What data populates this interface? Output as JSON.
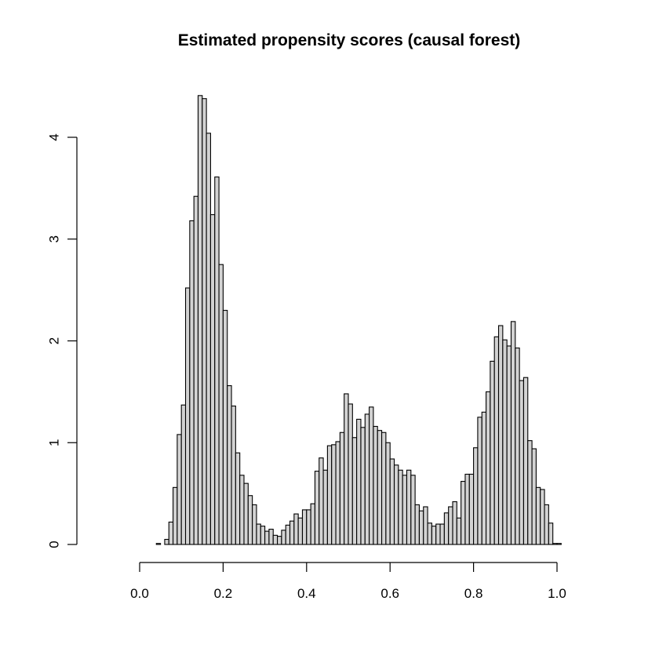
{
  "chart_data": {
    "type": "bar",
    "title": "Estimated propensity scores (causal forest)",
    "xlabel": "",
    "ylabel": "",
    "xlim": [
      0.0,
      1.0
    ],
    "ylim": [
      0,
      4.4
    ],
    "x_ticks": [
      "0.0",
      "0.2",
      "0.4",
      "0.6",
      "0.8",
      "1.0"
    ],
    "y_ticks": [
      "0",
      "1",
      "2",
      "3",
      "4"
    ],
    "bin_width": 0.01,
    "bin_start": 0.04,
    "values": [
      0.01,
      0.0,
      0.05,
      0.22,
      0.56,
      1.08,
      1.37,
      2.52,
      3.18,
      3.42,
      4.41,
      4.38,
      4.04,
      3.24,
      3.61,
      2.75,
      2.3,
      1.56,
      1.36,
      0.9,
      0.68,
      0.6,
      0.48,
      0.39,
      0.2,
      0.18,
      0.13,
      0.15,
      0.09,
      0.08,
      0.14,
      0.19,
      0.23,
      0.3,
      0.26,
      0.34,
      0.34,
      0.4,
      0.72,
      0.85,
      0.73,
      0.97,
      0.98,
      1.01,
      1.1,
      1.48,
      1.38,
      1.05,
      1.23,
      1.15,
      1.28,
      1.35,
      1.16,
      1.12,
      1.1,
      1.0,
      0.84,
      0.78,
      0.73,
      0.68,
      0.73,
      0.68,
      0.39,
      0.33,
      0.37,
      0.21,
      0.18,
      0.2,
      0.2,
      0.31,
      0.37,
      0.42,
      0.26,
      0.62,
      0.69,
      0.69,
      0.95,
      1.25,
      1.3,
      1.5,
      1.8,
      2.04,
      2.15,
      2.01,
      1.95,
      2.19,
      1.93,
      1.61,
      1.64,
      1.02,
      0.94,
      0.56,
      0.54,
      0.39,
      0.21,
      0.01,
      0.01
    ]
  }
}
